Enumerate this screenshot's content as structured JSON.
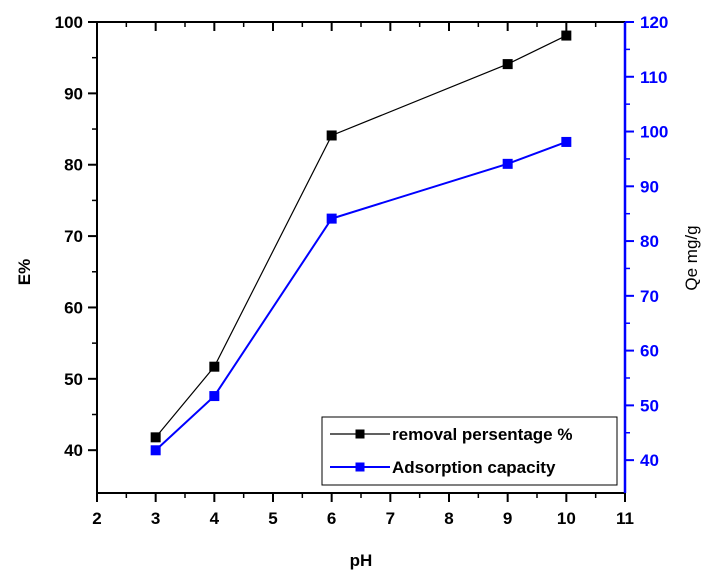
{
  "chart_data": {
    "type": "line",
    "xlabel": "pH",
    "ylabel_left": "E%",
    "ylabel_right": "Qe mg/g",
    "xlim": [
      2,
      11
    ],
    "ylim_left": [
      34,
      100
    ],
    "ylim_right": [
      34,
      120
    ],
    "x_ticks": [
      2,
      3,
      4,
      5,
      6,
      7,
      8,
      9,
      10,
      11
    ],
    "y_left_ticks": [
      40,
      50,
      60,
      70,
      80,
      90,
      100
    ],
    "y_right_ticks": [
      40,
      50,
      60,
      70,
      80,
      90,
      100,
      110,
      120
    ],
    "series": [
      {
        "name": "removal persentage %",
        "axis": "left",
        "color": "#000000",
        "x": [
          3,
          4,
          6,
          9,
          10
        ],
        "y": [
          41.8,
          51.7,
          84.1,
          94.1,
          98.1
        ]
      },
      {
        "name": "Adsorption capacity",
        "axis": "right",
        "color": "#0000ff",
        "x": [
          3,
          4,
          6,
          9,
          10
        ],
        "y": [
          41.8,
          51.7,
          84.1,
          94.1,
          98.1
        ]
      }
    ],
    "legend": "bottom-right",
    "grid": false
  }
}
